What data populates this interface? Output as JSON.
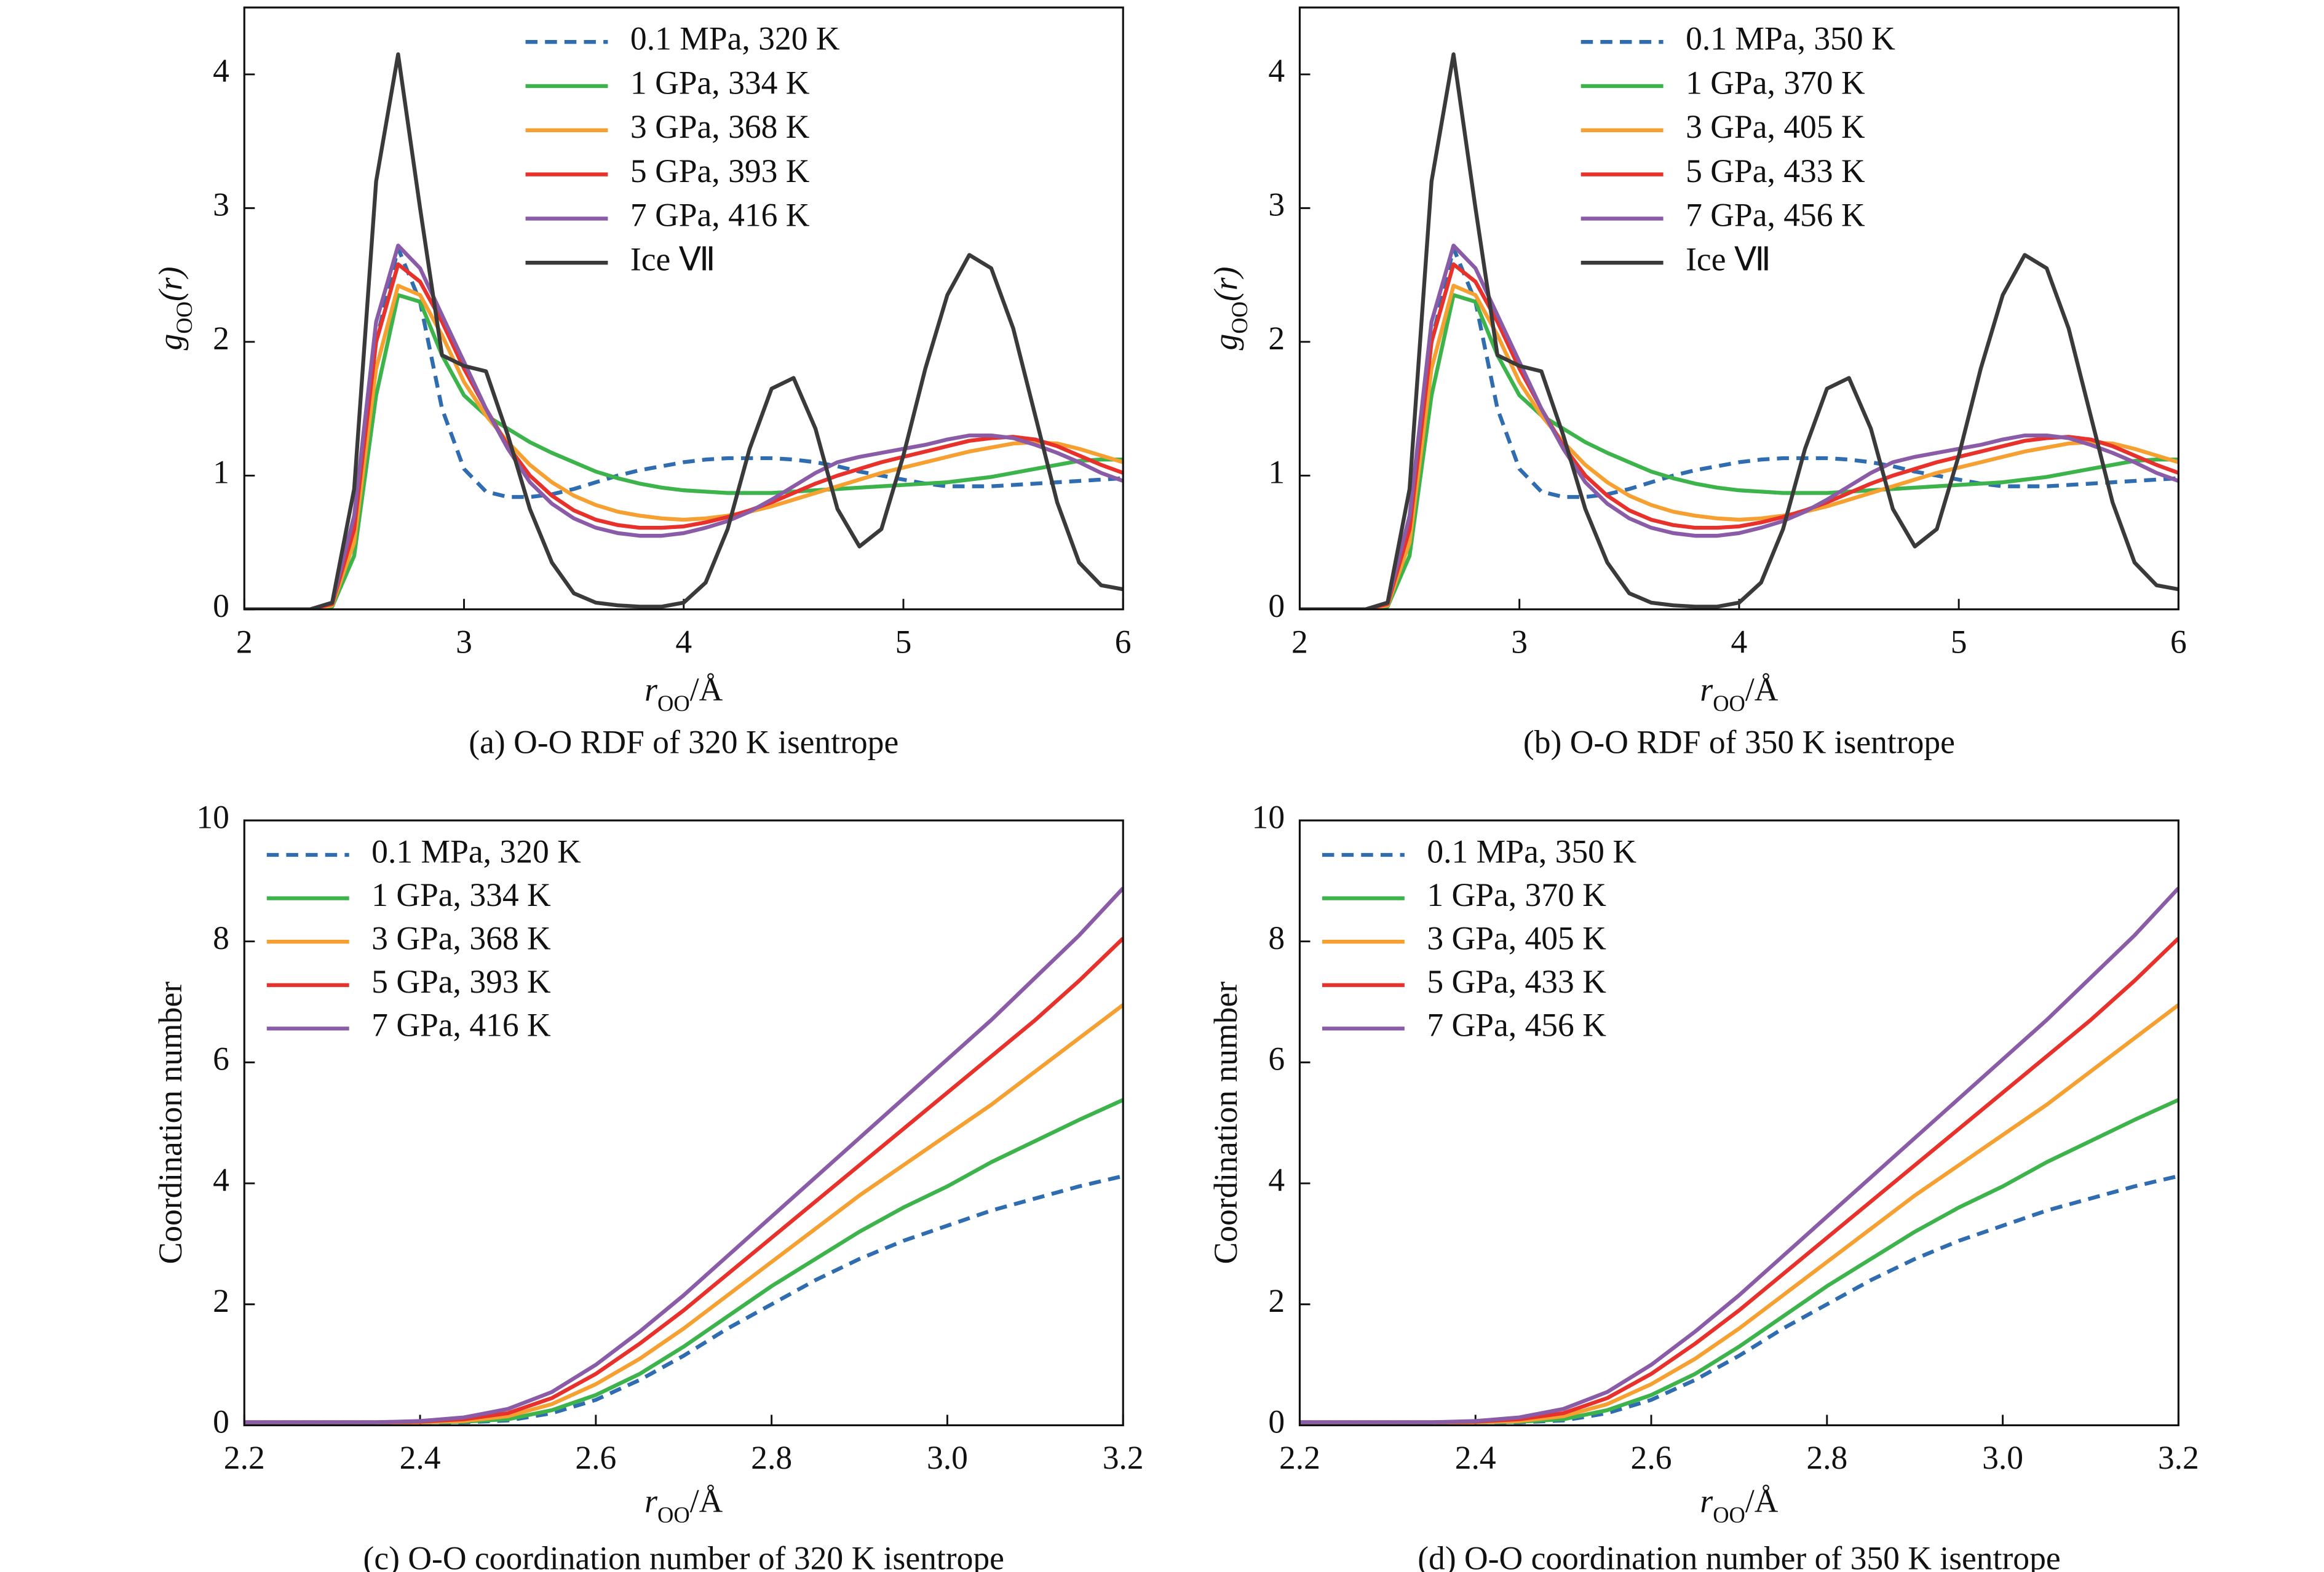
{
  "chart_data": [
    {
      "type": "line",
      "caption": "(a) O-O RDF of 320 K isentrope",
      "xlabel": [
        "r",
        "OO",
        "/Å"
      ],
      "ylabel": [
        "g",
        "OO",
        "(r)"
      ],
      "xlim": [
        2,
        6
      ],
      "ylim": [
        0,
        4.5
      ],
      "xticks": [
        2,
        3,
        4,
        5,
        6
      ],
      "yticks": [
        0,
        1,
        2,
        3,
        4
      ],
      "legend": "upper center",
      "x": [
        2.0,
        2.1,
        2.2,
        2.3,
        2.4,
        2.5,
        2.6,
        2.7,
        2.8,
        2.9,
        3.0,
        3.1,
        3.2,
        3.3,
        3.4,
        3.5,
        3.6,
        3.7,
        3.8,
        3.9,
        4.0,
        4.1,
        4.2,
        4.3,
        4.4,
        4.5,
        4.6,
        4.7,
        4.8,
        4.9,
        5.0,
        5.1,
        5.2,
        5.3,
        5.4,
        5.5,
        5.6,
        5.7,
        5.8,
        5.9,
        6.0
      ],
      "series": [
        {
          "name": "0.1 MPa, 320 K",
          "color": "#2f6db0",
          "dashed": true,
          "values": [
            0,
            0,
            0,
            0,
            0.05,
            0.6,
            2.0,
            2.7,
            2.3,
            1.5,
            1.05,
            0.88,
            0.84,
            0.84,
            0.86,
            0.9,
            0.95,
            1.0,
            1.04,
            1.07,
            1.1,
            1.12,
            1.13,
            1.13,
            1.13,
            1.12,
            1.1,
            1.07,
            1.03,
            1.0,
            0.97,
            0.94,
            0.92,
            0.92,
            0.92,
            0.93,
            0.94,
            0.95,
            0.96,
            0.97,
            0.98
          ]
        },
        {
          "name": "1 GPa, 334 K",
          "color": "#3cb44b",
          "values": [
            0,
            0,
            0,
            0,
            0.02,
            0.4,
            1.6,
            2.35,
            2.3,
            1.9,
            1.6,
            1.45,
            1.35,
            1.25,
            1.17,
            1.1,
            1.03,
            0.98,
            0.94,
            0.91,
            0.89,
            0.88,
            0.87,
            0.87,
            0.87,
            0.88,
            0.89,
            0.9,
            0.91,
            0.92,
            0.93,
            0.94,
            0.95,
            0.97,
            0.99,
            1.02,
            1.05,
            1.08,
            1.11,
            1.12,
            1.12
          ]
        },
        {
          "name": "3 GPa, 368 K",
          "color": "#f5a030",
          "values": [
            0,
            0,
            0,
            0,
            0.03,
            0.5,
            1.8,
            2.42,
            2.35,
            2.05,
            1.7,
            1.45,
            1.25,
            1.08,
            0.95,
            0.85,
            0.78,
            0.73,
            0.7,
            0.68,
            0.67,
            0.68,
            0.7,
            0.73,
            0.77,
            0.82,
            0.87,
            0.92,
            0.97,
            1.02,
            1.06,
            1.1,
            1.14,
            1.18,
            1.21,
            1.24,
            1.25,
            1.24,
            1.2,
            1.15,
            1.1
          ]
        },
        {
          "name": "5 GPa, 393 K",
          "color": "#e8312a",
          "values": [
            0,
            0,
            0,
            0,
            0.04,
            0.6,
            2.0,
            2.58,
            2.45,
            2.15,
            1.8,
            1.5,
            1.22,
            1.0,
            0.85,
            0.74,
            0.67,
            0.63,
            0.61,
            0.61,
            0.62,
            0.65,
            0.69,
            0.74,
            0.8,
            0.87,
            0.94,
            1.0,
            1.05,
            1.1,
            1.14,
            1.18,
            1.22,
            1.26,
            1.28,
            1.29,
            1.27,
            1.22,
            1.15,
            1.08,
            1.02
          ]
        },
        {
          "name": "7 GPa, 416 K",
          "color": "#8a5ca8",
          "values": [
            0,
            0,
            0,
            0,
            0.05,
            0.7,
            2.15,
            2.72,
            2.55,
            2.2,
            1.85,
            1.5,
            1.2,
            0.95,
            0.79,
            0.68,
            0.61,
            0.57,
            0.55,
            0.55,
            0.57,
            0.61,
            0.66,
            0.73,
            0.82,
            0.92,
            1.02,
            1.1,
            1.14,
            1.17,
            1.2,
            1.23,
            1.27,
            1.3,
            1.3,
            1.28,
            1.23,
            1.17,
            1.1,
            1.02,
            0.96
          ]
        },
        {
          "name": "Ice Ⅶ",
          "color": "#3a3a3a",
          "values": [
            0,
            0,
            0,
            0,
            0.05,
            0.9,
            3.2,
            4.15,
            3.0,
            1.9,
            1.82,
            1.78,
            1.3,
            0.75,
            0.35,
            0.12,
            0.05,
            0.03,
            0.02,
            0.02,
            0.05,
            0.2,
            0.6,
            1.2,
            1.65,
            1.73,
            1.35,
            0.75,
            0.47,
            0.6,
            1.15,
            1.8,
            2.35,
            2.65,
            2.55,
            2.1,
            1.45,
            0.8,
            0.35,
            0.18,
            0.15
          ]
        }
      ]
    },
    {
      "type": "line",
      "caption": "(b) O-O RDF of 350 K isentrope",
      "xlabel": [
        "r",
        "OO",
        "/Å"
      ],
      "ylabel": [
        "g",
        "OO",
        "(r)"
      ],
      "xlim": [
        2,
        6
      ],
      "ylim": [
        0,
        4.5
      ],
      "xticks": [
        2,
        3,
        4,
        5,
        6
      ],
      "yticks": [
        0,
        1,
        2,
        3,
        4
      ],
      "legend": "upper center",
      "x": [
        2.0,
        2.1,
        2.2,
        2.3,
        2.4,
        2.5,
        2.6,
        2.7,
        2.8,
        2.9,
        3.0,
        3.1,
        3.2,
        3.3,
        3.4,
        3.5,
        3.6,
        3.7,
        3.8,
        3.9,
        4.0,
        4.1,
        4.2,
        4.3,
        4.4,
        4.5,
        4.6,
        4.7,
        4.8,
        4.9,
        5.0,
        5.1,
        5.2,
        5.3,
        5.4,
        5.5,
        5.6,
        5.7,
        5.8,
        5.9,
        6.0
      ],
      "series": [
        {
          "name": "0.1 MPa, 350 K",
          "color": "#2f6db0",
          "dashed": true,
          "values": [
            0,
            0,
            0,
            0,
            0.05,
            0.6,
            2.0,
            2.7,
            2.3,
            1.5,
            1.05,
            0.88,
            0.84,
            0.84,
            0.86,
            0.9,
            0.95,
            1.0,
            1.04,
            1.07,
            1.1,
            1.12,
            1.13,
            1.13,
            1.13,
            1.12,
            1.1,
            1.07,
            1.03,
            1.0,
            0.97,
            0.94,
            0.92,
            0.92,
            0.92,
            0.93,
            0.94,
            0.95,
            0.96,
            0.97,
            0.98
          ]
        },
        {
          "name": "1 GPa, 370 K",
          "color": "#3cb44b",
          "values": [
            0,
            0,
            0,
            0,
            0.02,
            0.4,
            1.6,
            2.35,
            2.3,
            1.9,
            1.6,
            1.45,
            1.35,
            1.25,
            1.17,
            1.1,
            1.03,
            0.98,
            0.94,
            0.91,
            0.89,
            0.88,
            0.87,
            0.87,
            0.87,
            0.88,
            0.89,
            0.9,
            0.91,
            0.92,
            0.93,
            0.94,
            0.95,
            0.97,
            0.99,
            1.02,
            1.05,
            1.08,
            1.11,
            1.12,
            1.12
          ]
        },
        {
          "name": "3 GPa, 405 K",
          "color": "#f5a030",
          "values": [
            0,
            0,
            0,
            0,
            0.03,
            0.5,
            1.8,
            2.42,
            2.35,
            2.05,
            1.7,
            1.45,
            1.25,
            1.08,
            0.95,
            0.85,
            0.78,
            0.73,
            0.7,
            0.68,
            0.67,
            0.68,
            0.7,
            0.73,
            0.77,
            0.82,
            0.87,
            0.92,
            0.97,
            1.02,
            1.06,
            1.1,
            1.14,
            1.18,
            1.21,
            1.24,
            1.25,
            1.24,
            1.2,
            1.15,
            1.1
          ]
        },
        {
          "name": "5 GPa, 433 K",
          "color": "#e8312a",
          "values": [
            0,
            0,
            0,
            0,
            0.04,
            0.6,
            2.0,
            2.58,
            2.45,
            2.15,
            1.8,
            1.5,
            1.22,
            1.0,
            0.85,
            0.74,
            0.67,
            0.63,
            0.61,
            0.61,
            0.62,
            0.65,
            0.69,
            0.74,
            0.8,
            0.87,
            0.94,
            1.0,
            1.05,
            1.1,
            1.14,
            1.18,
            1.22,
            1.26,
            1.28,
            1.29,
            1.27,
            1.22,
            1.15,
            1.08,
            1.02
          ]
        },
        {
          "name": "7 GPa, 456 K",
          "color": "#8a5ca8",
          "values": [
            0,
            0,
            0,
            0,
            0.05,
            0.7,
            2.15,
            2.72,
            2.55,
            2.2,
            1.85,
            1.5,
            1.2,
            0.95,
            0.79,
            0.68,
            0.61,
            0.57,
            0.55,
            0.55,
            0.57,
            0.61,
            0.66,
            0.73,
            0.82,
            0.92,
            1.02,
            1.1,
            1.14,
            1.17,
            1.2,
            1.23,
            1.27,
            1.3,
            1.3,
            1.28,
            1.23,
            1.17,
            1.1,
            1.02,
            0.96
          ]
        },
        {
          "name": "Ice Ⅶ",
          "color": "#3a3a3a",
          "values": [
            0,
            0,
            0,
            0,
            0.05,
            0.9,
            3.2,
            4.15,
            3.0,
            1.9,
            1.82,
            1.78,
            1.3,
            0.75,
            0.35,
            0.12,
            0.05,
            0.03,
            0.02,
            0.02,
            0.05,
            0.2,
            0.6,
            1.2,
            1.65,
            1.73,
            1.35,
            0.75,
            0.47,
            0.6,
            1.15,
            1.8,
            2.35,
            2.65,
            2.55,
            2.1,
            1.45,
            0.8,
            0.35,
            0.18,
            0.15
          ]
        }
      ]
    },
    {
      "type": "line",
      "caption": "(c) O-O coordination number of 320 K isentrope",
      "xlabel": [
        "r",
        "OO",
        "/Å"
      ],
      "ylabel": [
        "Coordination number"
      ],
      "xlim": [
        2.2,
        3.2
      ],
      "ylim": [
        0,
        10
      ],
      "xticks": [
        2.2,
        2.4,
        2.6,
        2.8,
        {
          "value": 3,
          "label": "3.0"
        },
        3.2
      ],
      "yticks": [
        0,
        2,
        4,
        6,
        8,
        10
      ],
      "legend": "upper left",
      "x": [
        2.2,
        2.25,
        2.3,
        2.35,
        2.4,
        2.45,
        2.5,
        2.55,
        2.6,
        2.65,
        2.7,
        2.75,
        2.8,
        2.85,
        2.9,
        2.95,
        3.0,
        3.05,
        3.1,
        3.15,
        3.2
      ],
      "series": [
        {
          "name": "0.1 MPa, 320 K",
          "color": "#2f6db0",
          "dashed": true,
          "values": [
            0.05,
            0.05,
            0.05,
            0.05,
            0.05,
            0.05,
            0.08,
            0.2,
            0.42,
            0.75,
            1.15,
            1.6,
            2.0,
            2.4,
            2.75,
            3.05,
            3.3,
            3.55,
            3.75,
            3.95,
            4.12
          ]
        },
        {
          "name": "1 GPa, 334 K",
          "color": "#3cb44b",
          "values": [
            0.05,
            0.05,
            0.05,
            0.05,
            0.05,
            0.06,
            0.1,
            0.25,
            0.5,
            0.85,
            1.3,
            1.8,
            2.3,
            2.75,
            3.2,
            3.6,
            3.95,
            4.35,
            4.7,
            5.05,
            5.38
          ]
        },
        {
          "name": "3 GPa, 368 K",
          "color": "#f5a030",
          "values": [
            0.05,
            0.05,
            0.05,
            0.05,
            0.05,
            0.07,
            0.15,
            0.35,
            0.68,
            1.1,
            1.6,
            2.15,
            2.7,
            3.25,
            3.8,
            4.3,
            4.8,
            5.3,
            5.85,
            6.4,
            6.95
          ]
        },
        {
          "name": "5 GPa, 393 K",
          "color": "#e8312a",
          "values": [
            0.05,
            0.05,
            0.05,
            0.05,
            0.06,
            0.1,
            0.2,
            0.45,
            0.85,
            1.35,
            1.9,
            2.5,
            3.1,
            3.7,
            4.3,
            4.9,
            5.5,
            6.1,
            6.7,
            7.35,
            8.05
          ]
        },
        {
          "name": "7 GPa, 416 K",
          "color": "#8a5ca8",
          "values": [
            0.05,
            0.05,
            0.05,
            0.05,
            0.07,
            0.13,
            0.27,
            0.55,
            1.0,
            1.55,
            2.15,
            2.8,
            3.45,
            4.1,
            4.75,
            5.4,
            6.05,
            6.7,
            7.4,
            8.1,
            8.88
          ]
        }
      ]
    },
    {
      "type": "line",
      "caption": "(d) O-O coordination number of 350 K isentrope",
      "xlabel": [
        "r",
        "OO",
        "/Å"
      ],
      "ylabel": [
        "Coordination number"
      ],
      "xlim": [
        2.2,
        3.2
      ],
      "ylim": [
        0,
        10
      ],
      "xticks": [
        2.2,
        2.4,
        2.6,
        2.8,
        {
          "value": 3,
          "label": "3.0"
        },
        3.2
      ],
      "yticks": [
        0,
        2,
        4,
        6,
        8,
        10
      ],
      "legend": "upper left",
      "x": [
        2.2,
        2.25,
        2.3,
        2.35,
        2.4,
        2.45,
        2.5,
        2.55,
        2.6,
        2.65,
        2.7,
        2.75,
        2.8,
        2.85,
        2.9,
        2.95,
        3.0,
        3.05,
        3.1,
        3.15,
        3.2
      ],
      "series": [
        {
          "name": "0.1 MPa, 350 K",
          "color": "#2f6db0",
          "dashed": true,
          "values": [
            0.05,
            0.05,
            0.05,
            0.05,
            0.05,
            0.05,
            0.08,
            0.2,
            0.42,
            0.75,
            1.15,
            1.6,
            2.0,
            2.4,
            2.75,
            3.05,
            3.3,
            3.55,
            3.75,
            3.95,
            4.12
          ]
        },
        {
          "name": "1 GPa, 370 K",
          "color": "#3cb44b",
          "values": [
            0.05,
            0.05,
            0.05,
            0.05,
            0.05,
            0.06,
            0.1,
            0.25,
            0.5,
            0.85,
            1.3,
            1.8,
            2.3,
            2.75,
            3.2,
            3.6,
            3.95,
            4.35,
            4.7,
            5.05,
            5.38
          ]
        },
        {
          "name": "3 GPa, 405 K",
          "color": "#f5a030",
          "values": [
            0.05,
            0.05,
            0.05,
            0.05,
            0.05,
            0.07,
            0.15,
            0.35,
            0.68,
            1.1,
            1.6,
            2.15,
            2.7,
            3.25,
            3.8,
            4.3,
            4.8,
            5.3,
            5.85,
            6.4,
            6.95
          ]
        },
        {
          "name": "5 GPa, 433 K",
          "color": "#e8312a",
          "values": [
            0.05,
            0.05,
            0.05,
            0.05,
            0.06,
            0.1,
            0.2,
            0.45,
            0.85,
            1.35,
            1.9,
            2.5,
            3.1,
            3.7,
            4.3,
            4.9,
            5.5,
            6.1,
            6.7,
            7.35,
            8.05
          ]
        },
        {
          "name": "7 GPa, 456 K",
          "color": "#8a5ca8",
          "values": [
            0.05,
            0.05,
            0.05,
            0.05,
            0.07,
            0.13,
            0.27,
            0.55,
            1.0,
            1.55,
            2.15,
            2.8,
            3.45,
            4.1,
            4.75,
            5.4,
            6.05,
            6.7,
            7.4,
            8.1,
            8.88
          ]
        }
      ]
    }
  ]
}
